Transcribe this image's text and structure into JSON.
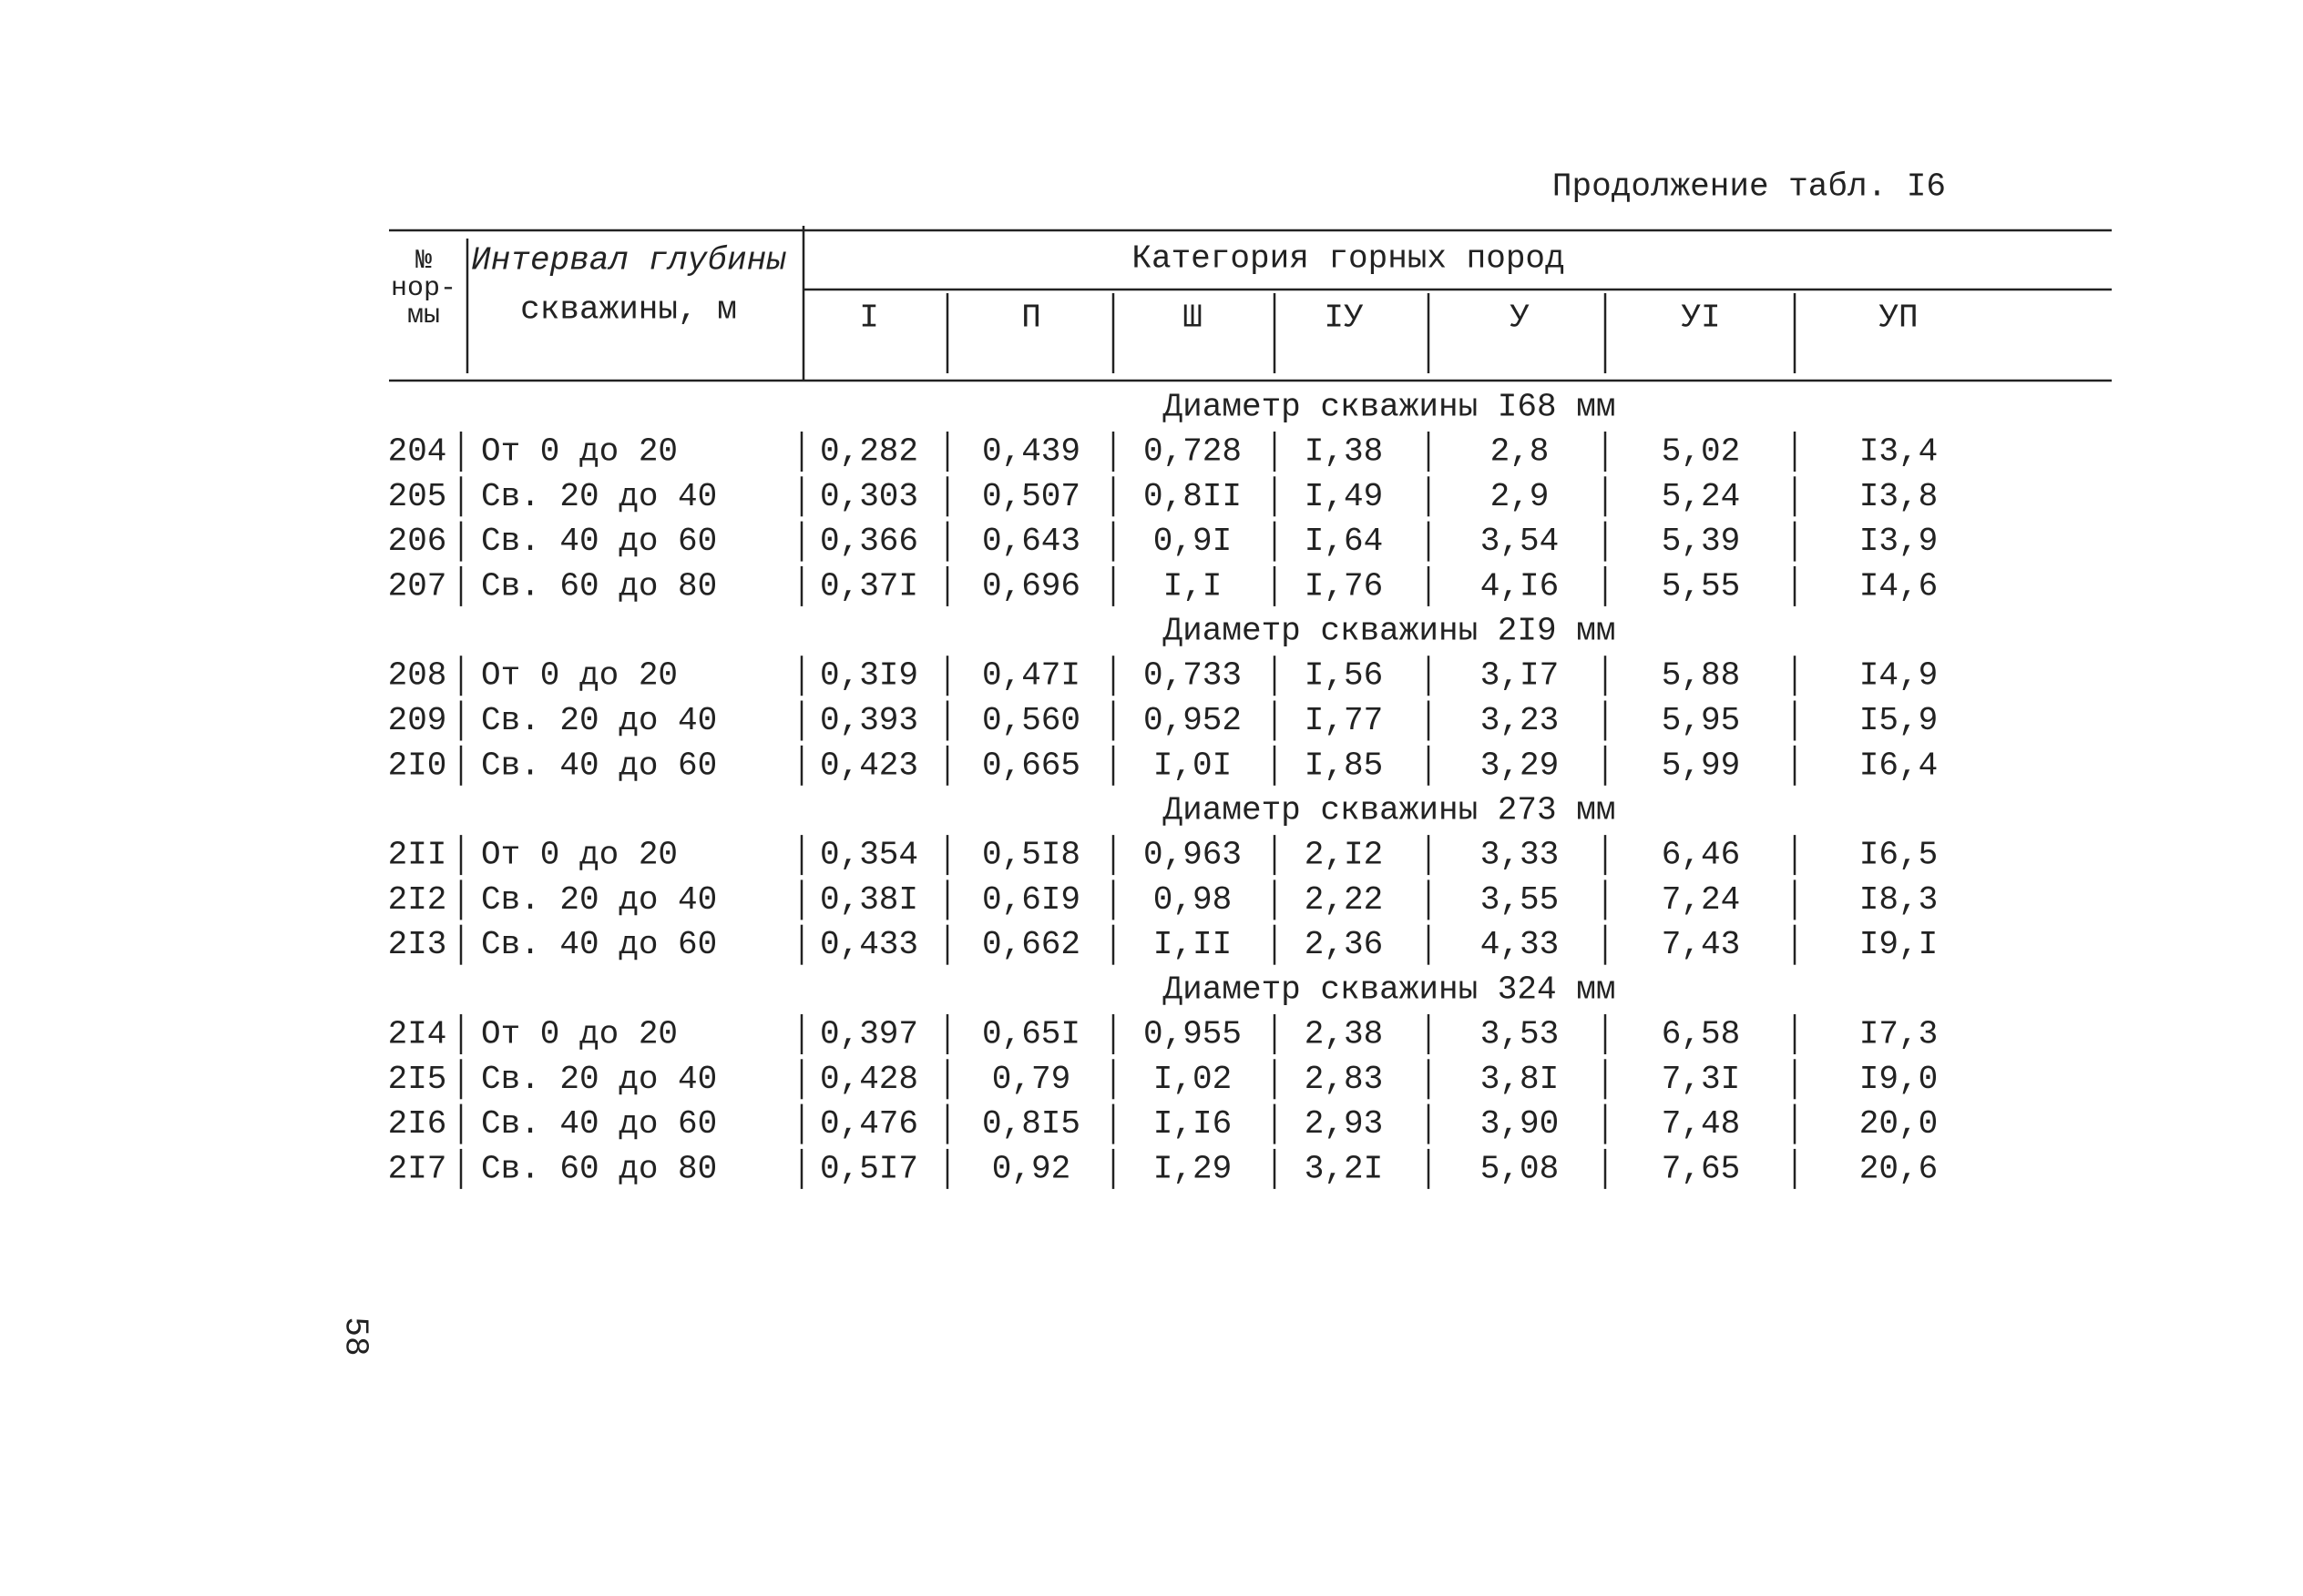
{
  "header": {
    "title": "Продолжение табл. I6"
  },
  "table": {
    "number_head": [
      "№",
      "нор-",
      "мы"
    ],
    "interval_head": [
      "Интервал глубины",
      "скважины, м"
    ],
    "category_head": "Категория горных пород",
    "categories": [
      "I",
      "П",
      "Ш",
      "IУ",
      "У",
      "УI",
      "УП"
    ],
    "sections": [
      {
        "heading": "Диаметр скважины I68 мм",
        "rows": [
          [
            "204",
            "От 0 до 20",
            "0,282",
            "0,439",
            "0,728",
            "I,38",
            "2,8",
            "5,02",
            "I3,4"
          ],
          [
            "205",
            "Св. 20 до 40",
            "0,303",
            "0,507",
            "0,8II",
            "I,49",
            "2,9",
            "5,24",
            "I3,8"
          ],
          [
            "206",
            "Св. 40 до 60",
            "0,366",
            "0,643",
            "0,9I",
            "I,64",
            "3,54",
            "5,39",
            "I3,9"
          ],
          [
            "207",
            "Св. 60 до 80",
            "0,37I",
            "0,696",
            "I,I",
            "I,76",
            "4,I6",
            "5,55",
            "I4,6"
          ]
        ]
      },
      {
        "heading": "Диаметр скважины 2I9 мм",
        "rows": [
          [
            "208",
            "От 0 до 20",
            "0,3I9",
            "0,47I",
            "0,733",
            "I,56",
            "3,I7",
            "5,88",
            "I4,9"
          ],
          [
            "209",
            "Св. 20 до 40",
            "0,393",
            "0,560",
            "0,952",
            "I,77",
            "3,23",
            "5,95",
            "I5,9"
          ],
          [
            "2I0",
            "Св. 40 до 60",
            "0,423",
            "0,665",
            "I,0I",
            "I,85",
            "3,29",
            "5,99",
            "I6,4"
          ]
        ]
      },
      {
        "heading": "Диаметр скважины 273 мм",
        "rows": [
          [
            "2II",
            "От 0 до 20",
            "0,354",
            "0,5I8",
            "0,963",
            "2,I2",
            "3,33",
            "6,46",
            "I6,5"
          ],
          [
            "2I2",
            "Св. 20 до 40",
            "0,38I",
            "0,6I9",
            "0,98",
            "2,22",
            "3,55",
            "7,24",
            "I8,3"
          ],
          [
            "2I3",
            "Св. 40 до 60",
            "0,433",
            "0,662",
            "I,II",
            "2,36",
            "4,33",
            "7,43",
            "I9,I"
          ]
        ]
      },
      {
        "heading": "Диаметр скважины 324 мм",
        "rows": [
          [
            "2I4",
            "От 0 до 20",
            "0,397",
            "0,65I",
            "0,955",
            "2,38",
            "3,53",
            "6,58",
            "I7,3"
          ],
          [
            "2I5",
            "Св. 20 до 40",
            "0,428",
            "0,79",
            "I,02",
            "2,83",
            "3,8I",
            "7,3I",
            "I9,0"
          ],
          [
            "2I6",
            "Св. 40 до 60",
            "0,476",
            "0,8I5",
            "I,I6",
            "2,93",
            "3,90",
            "7,48",
            "20,0"
          ],
          [
            "2I7",
            "Св. 60 до 80",
            "0,5I7",
            "0,92",
            "I,29",
            "3,2I",
            "5,08",
            "7,65",
            "20,6"
          ]
        ]
      }
    ]
  },
  "footer": {
    "page_number": "58"
  }
}
